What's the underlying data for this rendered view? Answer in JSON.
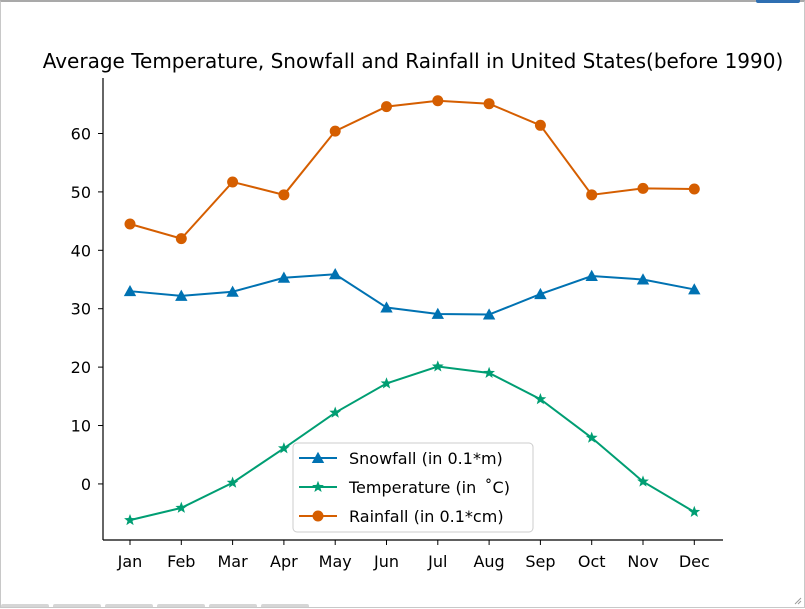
{
  "chart_data": {
    "type": "line",
    "title": "Average Temperature, Snowfall and Rainfall in United States(before 1990)",
    "xlabel": "",
    "ylabel": "",
    "categories": [
      "Jan",
      "Feb",
      "Mar",
      "Apr",
      "May",
      "Jun",
      "Jul",
      "Aug",
      "Sep",
      "Oct",
      "Nov",
      "Dec"
    ],
    "ylim": [
      -9.6,
      69.5
    ],
    "yticks": [
      0,
      10,
      20,
      30,
      40,
      50,
      60
    ],
    "grid": false,
    "legend_position": "bottom-center",
    "series": [
      {
        "name": "Snowfall (in 0.1*m)",
        "marker": "triangle",
        "color": "#0072b2",
        "values": [
          33.0,
          32.2,
          32.9,
          35.3,
          35.9,
          30.2,
          29.1,
          29.0,
          32.5,
          35.6,
          35.0,
          33.3
        ]
      },
      {
        "name": "Temperature (in  ˚C)",
        "marker": "star",
        "color": "#009e73",
        "values": [
          -6.2,
          -4.1,
          0.2,
          6.1,
          12.2,
          17.2,
          20.1,
          19.0,
          14.5,
          7.9,
          0.4,
          -4.8
        ]
      },
      {
        "name": "Rainfall (in 0.1*cm)",
        "marker": "circle",
        "color": "#d55e00",
        "values": [
          44.5,
          42.0,
          51.7,
          49.5,
          60.4,
          64.6,
          65.6,
          65.1,
          61.4,
          49.5,
          50.6,
          50.5
        ]
      }
    ]
  }
}
